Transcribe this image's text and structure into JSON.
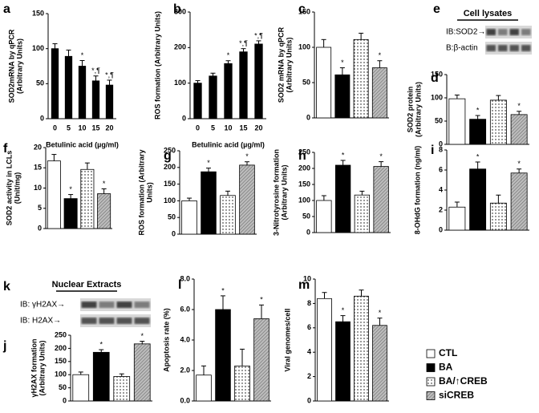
{
  "chart_data": [
    {
      "label": "a",
      "type": "bar",
      "color": "#000000",
      "ylabel": [
        "SOD2mRNA by qPCR",
        "(Arbitrary Units)"
      ],
      "xlabel": "Betulinic acid (µg/ml)",
      "categories": [
        "0",
        "5",
        "10",
        "15",
        "20"
      ],
      "values": [
        100,
        89,
        75,
        54,
        48
      ],
      "errors": [
        7,
        9,
        8,
        7,
        7
      ],
      "annotations": [
        null,
        null,
        "*",
        "*,¶",
        "*,¶"
      ],
      "ylim": [
        0,
        150
      ],
      "yticks": [
        0,
        50,
        100,
        150
      ]
    },
    {
      "label": "b",
      "type": "bar",
      "color": "#000000",
      "ylabel": [
        "ROS formation (Arbitrary Units)"
      ],
      "xlabel": "Betulinic acid (µg/ml)",
      "categories": [
        "0",
        "5",
        "10",
        "15",
        "20"
      ],
      "values": [
        100,
        120,
        155,
        188,
        210
      ],
      "errors": [
        7,
        8,
        8,
        9,
        9
      ],
      "annotations": [
        null,
        null,
        "*",
        "*,¶",
        "*,¶"
      ],
      "ylim": [
        0,
        300
      ],
      "yticks": [
        0,
        100,
        200,
        300
      ]
    },
    {
      "label": "c",
      "type": "bar",
      "ylabel": [
        "SOD2 mRNA by qPCR",
        "(Arbitrary Units)"
      ],
      "values": [
        100,
        61,
        111,
        71
      ],
      "errors": [
        11,
        10,
        9,
        10
      ],
      "annotations": [
        null,
        "*",
        null,
        "*"
      ],
      "ylim": [
        0,
        150
      ],
      "yticks": [
        0,
        50,
        100,
        150
      ]
    },
    {
      "label": "d",
      "type": "bar",
      "ylabel": [
        "SOD2 protein",
        "(Arbitrary Units)"
      ],
      "values": [
        98,
        54,
        95,
        64
      ],
      "errors": [
        8,
        8,
        10,
        7
      ],
      "annotations": [
        null,
        "*",
        null,
        "*"
      ],
      "ylim": [
        0,
        150
      ],
      "yticks": [
        0,
        50,
        100,
        150
      ]
    },
    {
      "label": "f",
      "type": "bar",
      "ylabel": [
        "SOD2 activity in LCLs",
        "(Unit/mg)"
      ],
      "values": [
        16.7,
        7.4,
        14.6,
        8.6
      ],
      "errors": [
        1.6,
        1,
        1.6,
        1.2
      ],
      "annotations": [
        null,
        "*",
        null,
        "*"
      ],
      "ylim": [
        0,
        20
      ],
      "yticks": [
        0,
        5,
        10,
        15,
        20
      ]
    },
    {
      "label": "g",
      "type": "bar",
      "ylabel": [
        "ROS formation (Arbitrary",
        "Units)"
      ],
      "values": [
        100,
        187,
        116,
        207
      ],
      "errors": [
        8,
        11,
        13,
        10
      ],
      "annotations": [
        null,
        "*",
        null,
        "*"
      ],
      "ylim": [
        0,
        250
      ],
      "yticks": [
        0,
        50,
        100,
        150,
        200,
        250
      ]
    },
    {
      "label": "h",
      "type": "bar",
      "ylabel": [
        "3-Nitrotyrosine formation",
        "(Arbitrary Units)"
      ],
      "values": [
        100,
        210,
        117,
        206
      ],
      "errors": [
        15,
        15,
        12,
        15
      ],
      "annotations": [
        null,
        "*",
        null,
        "*"
      ],
      "ylim": [
        0,
        250
      ],
      "yticks": [
        0,
        50,
        100,
        150,
        200,
        250
      ]
    },
    {
      "label": "i",
      "type": "bar",
      "ylabel": [
        "8-OHdG formation (ng/ml)"
      ],
      "values": [
        2.3,
        6.1,
        2.7,
        5.7
      ],
      "errors": [
        0.5,
        0.7,
        0.8,
        0.4
      ],
      "annotations": [
        null,
        "*",
        null,
        "*"
      ],
      "ylim": [
        0,
        8
      ],
      "yticks": [
        0,
        2,
        4,
        6,
        8
      ]
    },
    {
      "label": "j",
      "type": "bar",
      "ylabel": [
        "γH2AX formation",
        "(Arbitrary Units)"
      ],
      "values": [
        100,
        185,
        93,
        217
      ],
      "errors": [
        10,
        10,
        10,
        10
      ],
      "annotations": [
        null,
        "*",
        null,
        "*"
      ],
      "ylim": [
        0,
        250
      ],
      "yticks": [
        0,
        50,
        100,
        150,
        200,
        250
      ]
    },
    {
      "label": "l",
      "type": "bar",
      "ylabel": [
        "Apoptosis rate (%)"
      ],
      "values": [
        1.7,
        6.0,
        2.3,
        5.4
      ],
      "errors": [
        0.6,
        0.9,
        1.1,
        0.9
      ],
      "annotations": [
        null,
        "*",
        null,
        "*"
      ],
      "ylim": [
        0,
        8
      ],
      "yticks": [
        {
          "value": 0,
          "label": "0.0"
        },
        {
          "value": 2,
          "label": "2.0"
        },
        {
          "value": 4,
          "label": "4.0"
        },
        {
          "value": 6,
          "label": "6.0"
        },
        {
          "value": 8,
          "label": "8.0"
        }
      ]
    },
    {
      "label": "m",
      "type": "bar",
      "ylabel": [
        "Viral genomes/cell"
      ],
      "values": [
        8.4,
        6.5,
        8.6,
        6.2
      ],
      "errors": [
        0.5,
        0.5,
        0.5,
        0.6
      ],
      "annotations": [
        null,
        "*",
        null,
        "*"
      ],
      "ylim": [
        0,
        10
      ],
      "yticks": [
        0,
        2,
        4,
        6,
        8,
        10
      ]
    }
  ],
  "legend": [
    {
      "name": "CTL",
      "fill": "white"
    },
    {
      "name": "BA",
      "fill": "black"
    },
    {
      "name": "BA/↑CREB",
      "fill": "dots"
    },
    {
      "name": "siCREB",
      "fill": "hatch"
    }
  ],
  "blots": [
    {
      "label": "e",
      "title": "Cell lysates",
      "rows": [
        "IB:SOD2→",
        "B:β-actin"
      ]
    },
    {
      "label": "k",
      "title": "Nuclear Extracts",
      "rows": [
        "IB: γH2AX→",
        "IB: H2AX→"
      ]
    }
  ]
}
